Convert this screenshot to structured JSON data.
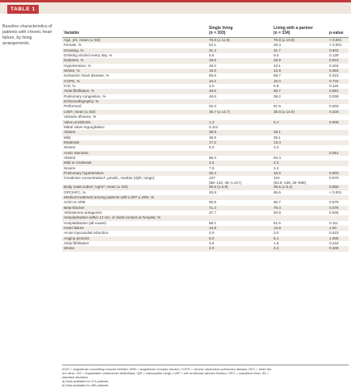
{
  "header": {
    "badge": "TABLE 1"
  },
  "caption": "Baseline characteristics of patients with chronic heart failure, by living arrangements.",
  "columns": {
    "variable": "Variable",
    "single": [
      "Single living",
      "(n = 303)"
    ],
    "partner": [
      "Living with a partner",
      "(n = 334)"
    ],
    "pvalue": "p-value"
  },
  "rows": [
    {
      "label": "Age, yrs, mean (± SD)",
      "single": "76.9 (± 11.9)",
      "partner": "70.8 (± 10.8)",
      "p": "< 0.001"
    },
    {
      "label": "Female, %",
      "single": "54.1",
      "partner": "26.4",
      "p": "< 0.001"
    },
    {
      "label": "Smoking, %",
      "single": "31.4",
      "partner": "31.7",
      "p": "0.932"
    },
    {
      "label": "Drinking alcohol every day, %",
      "single": "5.6",
      "partner": "9.0",
      "p": "0.129"
    },
    {
      "label": "Diabetes, %",
      "single": "18.5",
      "partner": "18.9",
      "p": "0.919"
    },
    {
      "label": "Hypertension, %",
      "single": "48.2",
      "partner": "43.1",
      "p": "0.204"
    },
    {
      "label": "Stroke, %",
      "single": "15.5",
      "partner": "12.9",
      "p": "0.363"
    },
    {
      "label": "Ischaemic heart disease, %",
      "single": "55.5",
      "partner": "58.7",
      "p": "0.424"
    },
    {
      "label": "COPD, %",
      "single": "16.2",
      "partner": "15.0",
      "p": "0.743"
    },
    {
      "label": "ICD, %",
      "single": "4.0",
      "partner": "6.9",
      "p": "0.119"
    },
    {
      "label": "Atrial fibrillation, %",
      "single": "48.5",
      "partner": "46.7",
      "p": "0.691"
    },
    {
      "label": "Pulmonary congestion, %",
      "single": "48.6",
      "partner": "39.2",
      "p": "0.039"
    },
    {
      "label": "Echocardiography, %",
      "single": "",
      "partner": "",
      "p": "",
      "section": true
    },
    {
      "label": "Performed",
      "single": "92.4",
      "partner": "97.6",
      "p": "0.003"
    },
    {
      "label": "LVEF, mean (± SD)",
      "single": "36.7 (± 14.7)",
      "partner": "35.8 (± 14.0)",
      "p": "0.228"
    },
    {
      "label": "Valvular disease, %",
      "single": "",
      "partner": "",
      "p": "",
      "section": true
    },
    {
      "label": "Valve prosthesis",
      "single": "1.3",
      "partner": "5.1",
      "p": "0.008"
    },
    {
      "label": "Mitral valve regurgitation:",
      "single": "0.112",
      "partner": "",
      "p": ""
    },
    {
      "label": "Absent",
      "single": "38.9",
      "partner": "48.1",
      "p": ""
    },
    {
      "label": "Mild",
      "single": "38.9",
      "partner": "35.1",
      "p": ""
    },
    {
      "label": "Moderate",
      "single": "17.2",
      "partner": "13.4",
      "p": ""
    },
    {
      "label": "Severe",
      "single": "5.0",
      "partner": "3.4",
      "p": ""
    },
    {
      "label": "Aortic stenosis:",
      "single": "",
      "partner": "",
      "p": "0.051"
    },
    {
      "label": "Absent",
      "single": "89.3",
      "partner": "94.4",
      "p": ""
    },
    {
      "label": "Mild or moderate",
      "single": "3.2",
      "partner": "2.2",
      "p": ""
    },
    {
      "label": "Severe",
      "single": "7.5",
      "partner": "3.4",
      "p": ""
    },
    {
      "label": "Pulmonary hypertension",
      "single": "25.4",
      "partner": "15.9",
      "p": "0.003"
    },
    {
      "label": "Creatinine concentrationᵃ, µmol/L, median (IQR; range)",
      "single": "107",
      "single2": "(85–142; 45–1,417)",
      "partner": "104",
      "partner2": "(83.5–139; 26–969)",
      "p": "0.670",
      "tall": true
    },
    {
      "label": "Body mass indexᵇ, kg/m², mean (± SD)",
      "single": "25.9 (± 5.9)",
      "partner": "26.5 (± 5.1)",
      "p": "0.858"
    },
    {
      "label": "OPC/HFC, %",
      "single": "45.9",
      "partner": "65.6",
      "p": "< 0.001"
    },
    {
      "label": "Medical treatment among patients with LVEF ≤ 40%, %",
      "single": "",
      "partner": "",
      "p": "",
      "section": true
    },
    {
      "label": "ACEI or ARB",
      "single": "90.9",
      "partner": "92.7",
      "p": "0.579"
    },
    {
      "label": "Beta-blocker",
      "single": "71.4",
      "partner": "79.4",
      "p": "0.076"
    },
    {
      "label": "Aldosterone antagonist",
      "single": "37.7",
      "partner": "40.8",
      "p": "0.535"
    },
    {
      "label": "Hospitalisation within 12 mo. of initial contact at hospital, %",
      "single": "",
      "partner": "",
      "p": "",
      "section": true
    },
    {
      "label": "Hospitalisation (all-cause)",
      "single": "58.1",
      "partner": "51.5",
      "p": "0.111"
    },
    {
      "label": "Heart failure",
      "single": "13.9",
      "partner": "13.8",
      "p": "1.00"
    },
    {
      "label": "Acute myocardial infarction",
      "single": "4.0",
      "partner": "3.0",
      "p": "0.523"
    },
    {
      "label": "Angina pectoris",
      "single": "5.0",
      "partner": "5.1",
      "p": "1.000"
    },
    {
      "label": "Atrial fibrillation",
      "single": "3.6",
      "partner": "1.8",
      "p": "0.218"
    },
    {
      "label": "Stroke",
      "single": "2.0",
      "partner": "3.3",
      "p": "0.336"
    }
  ],
  "footnotes": [
    "ACEI = angiotensin converting enzyme inhibitor; ARB = angiotensin receptor blocker; COPD = chronic obstructive pulmonary disease; HFC = heart fail-",
    "ure clinic; ICD = implantable cardioverter defibrillator; IQR = interquartile range; LVEF = left ventricular ejection fraction; OPC = outpatient clinic; SD =",
    "standard deviation.",
    "a) Data available for 471 patients.",
    "b) Data available for 480 patients."
  ]
}
